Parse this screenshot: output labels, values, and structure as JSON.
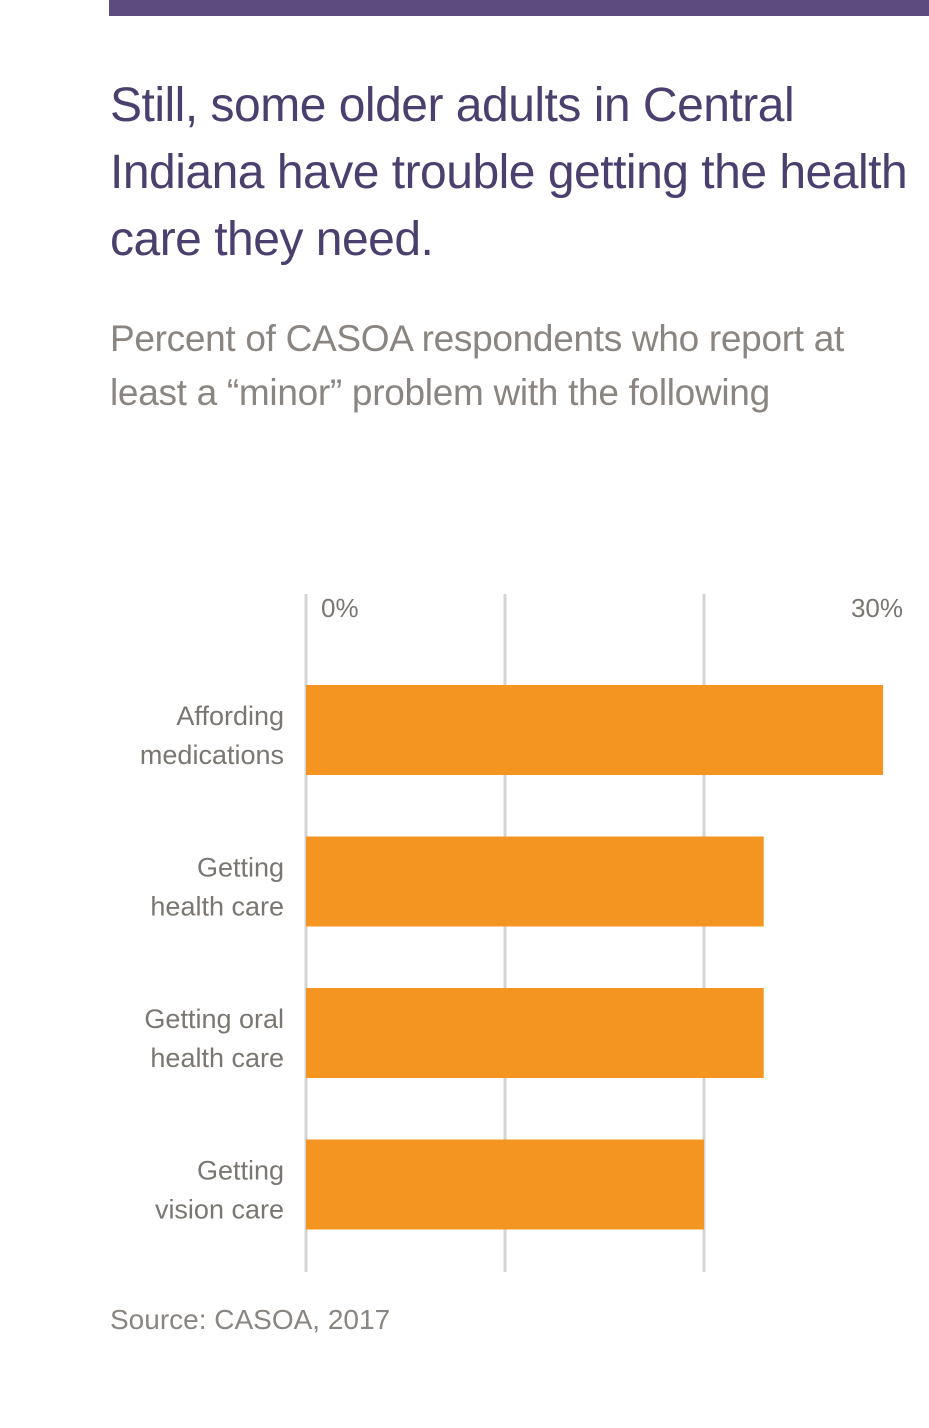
{
  "header": {
    "title": "Still, some older adults in Central Indiana have trouble getting the health care they need.",
    "subtitle": "Percent of CASOA respondents who report at least a “minor” problem with the following"
  },
  "footer": {
    "source": "Source: CASOA, 2017"
  },
  "colors": {
    "accent_bar": "#5b4b7f",
    "title": "#4b3f6e",
    "subtitle": "#8a8580",
    "bar": "#f49522",
    "grid": "#d4d4d4",
    "label": "#7a7672"
  },
  "chart_data": {
    "type": "bar",
    "orientation": "horizontal",
    "categories": [
      [
        "Affording",
        "medications"
      ],
      [
        "Getting",
        "health care"
      ],
      [
        "Getting oral",
        "health care"
      ],
      [
        "Getting",
        "vision care"
      ]
    ],
    "values": [
      29,
      23,
      23,
      20
    ],
    "xlim": [
      0,
      30
    ],
    "tick_labels": [
      "0%",
      "30%"
    ],
    "gridlines": [
      0,
      10,
      20
    ],
    "grid": true
  }
}
